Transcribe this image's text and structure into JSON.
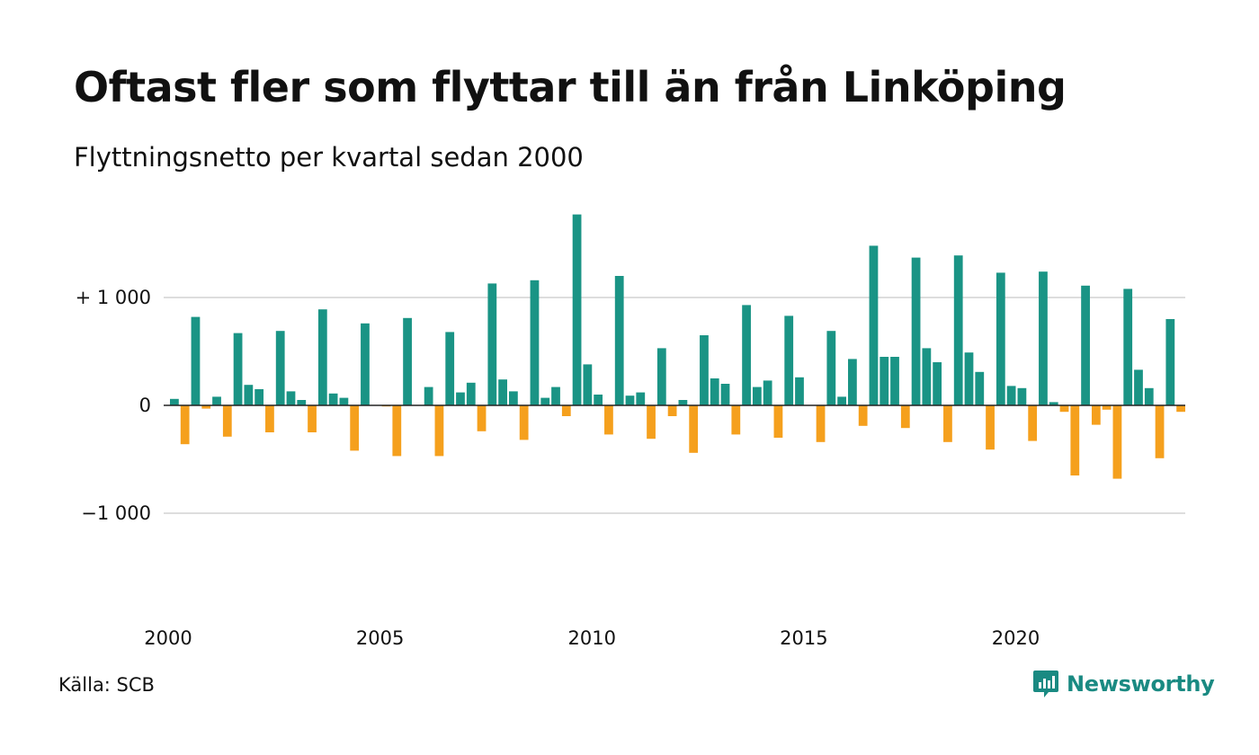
{
  "chart_data": {
    "type": "bar",
    "title": "Oftast fler som flyttar till än från Linköping",
    "subtitle": "Flyttningsnetto per kvartal sedan 2000",
    "x_start": "2000Q1",
    "frequency": "quarterly",
    "values": [
      60,
      -360,
      820,
      -30,
      80,
      -290,
      670,
      190,
      150,
      -250,
      690,
      130,
      50,
      -250,
      890,
      110,
      70,
      -420,
      760,
      0,
      -10,
      -470,
      810,
      0,
      170,
      -470,
      680,
      120,
      210,
      -240,
      1130,
      240,
      130,
      -320,
      1160,
      70,
      170,
      -100,
      1770,
      380,
      100,
      -270,
      1200,
      90,
      120,
      -310,
      530,
      -100,
      50,
      -440,
      650,
      250,
      200,
      -270,
      930,
      170,
      230,
      -300,
      830,
      260,
      0,
      -340,
      690,
      80,
      430,
      -190,
      1480,
      450,
      450,
      -210,
      1370,
      530,
      400,
      -340,
      1390,
      490,
      310,
      -410,
      1230,
      180,
      160,
      -330,
      1240,
      30,
      -60,
      -650,
      1110,
      -180,
      -40,
      -680,
      1080,
      330,
      160,
      -490,
      800,
      -60
    ],
    "positive_color": "#1a9485",
    "negative_color": "#f5a01d",
    "y_ticks": [
      {
        "value": 1000,
        "label": "+ 1 000"
      },
      {
        "value": 0,
        "label": "0"
      },
      {
        "value": -1000,
        "label": "−1 000"
      }
    ],
    "x_ticks": [
      "2000",
      "2005",
      "2010",
      "2015",
      "2020"
    ],
    "ylim": [
      -1800,
      1800
    ],
    "grid": true
  },
  "footer": {
    "source": "Källa: SCB",
    "brand": "Newsworthy"
  },
  "colors": {
    "brand": "#1a8a82",
    "grid": "#dddddd",
    "zero_line": "#222222"
  }
}
